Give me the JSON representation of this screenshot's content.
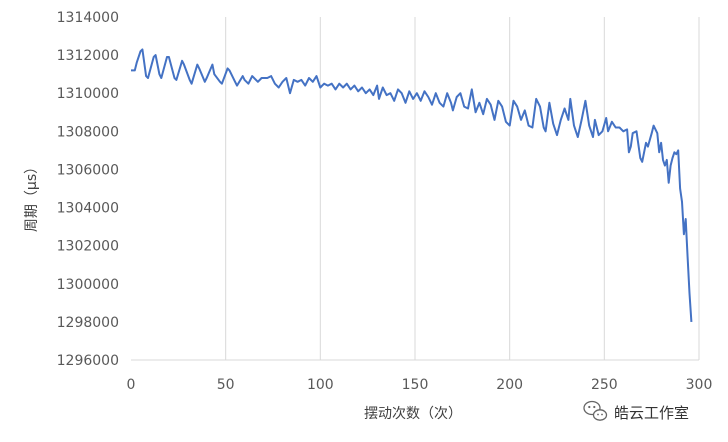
{
  "chart_data": {
    "type": "line",
    "xlabel": "摆动次数（次）",
    "ylabel": "周期（μs）",
    "xlim": [
      0,
      300
    ],
    "ylim": [
      1296000,
      1314000
    ],
    "x_ticks": [
      0,
      50,
      100,
      150,
      200,
      250,
      300
    ],
    "y_ticks": [
      1296000,
      1298000,
      1300000,
      1302000,
      1304000,
      1306000,
      1308000,
      1310000,
      1312000,
      1314000
    ],
    "grid": "vertical",
    "legend": "none",
    "line_color": "#4472C4",
    "series": [
      {
        "points": [
          [
            0,
            1311200
          ],
          [
            2,
            1311200
          ],
          [
            3,
            1311600
          ],
          [
            5,
            1312200
          ],
          [
            6,
            1312300
          ],
          [
            8,
            1310900
          ],
          [
            9,
            1310800
          ],
          [
            12,
            1311900
          ],
          [
            13,
            1312000
          ],
          [
            15,
            1311000
          ],
          [
            16,
            1310800
          ],
          [
            19,
            1311900
          ],
          [
            20,
            1311900
          ],
          [
            23,
            1310800
          ],
          [
            24,
            1310700
          ],
          [
            27,
            1311700
          ],
          [
            28,
            1311500
          ],
          [
            31,
            1310700
          ],
          [
            32,
            1310500
          ],
          [
            35,
            1311500
          ],
          [
            36,
            1311300
          ],
          [
            39,
            1310600
          ],
          [
            40,
            1310800
          ],
          [
            43,
            1311500
          ],
          [
            44,
            1311000
          ],
          [
            47,
            1310600
          ],
          [
            48,
            1310500
          ],
          [
            51,
            1311300
          ],
          [
            52,
            1311200
          ],
          [
            55,
            1310600
          ],
          [
            56,
            1310400
          ],
          [
            59,
            1310900
          ],
          [
            60,
            1310700
          ],
          [
            62,
            1310500
          ],
          [
            64,
            1310900
          ],
          [
            67,
            1310600
          ],
          [
            69,
            1310800
          ],
          [
            72,
            1310800
          ],
          [
            74,
            1310900
          ],
          [
            76,
            1310500
          ],
          [
            78,
            1310300
          ],
          [
            80,
            1310600
          ],
          [
            82,
            1310800
          ],
          [
            84,
            1310000
          ],
          [
            86,
            1310700
          ],
          [
            88,
            1310600
          ],
          [
            90,
            1310700
          ],
          [
            92,
            1310400
          ],
          [
            94,
            1310800
          ],
          [
            96,
            1310600
          ],
          [
            98,
            1310900
          ],
          [
            100,
            1310300
          ],
          [
            102,
            1310500
          ],
          [
            104,
            1310400
          ],
          [
            106,
            1310500
          ],
          [
            108,
            1310200
          ],
          [
            110,
            1310500
          ],
          [
            112,
            1310300
          ],
          [
            114,
            1310500
          ],
          [
            116,
            1310200
          ],
          [
            118,
            1310400
          ],
          [
            120,
            1310100
          ],
          [
            122,
            1310300
          ],
          [
            124,
            1310000
          ],
          [
            126,
            1310200
          ],
          [
            128,
            1309900
          ],
          [
            130,
            1310400
          ],
          [
            131,
            1309700
          ],
          [
            133,
            1310300
          ],
          [
            135,
            1309900
          ],
          [
            137,
            1310000
          ],
          [
            139,
            1309600
          ],
          [
            141,
            1310200
          ],
          [
            143,
            1310000
          ],
          [
            145,
            1309500
          ],
          [
            147,
            1310100
          ],
          [
            149,
            1309700
          ],
          [
            151,
            1310000
          ],
          [
            153,
            1309600
          ],
          [
            155,
            1310100
          ],
          [
            157,
            1309800
          ],
          [
            159,
            1309400
          ],
          [
            161,
            1310000
          ],
          [
            163,
            1309500
          ],
          [
            165,
            1309300
          ],
          [
            167,
            1310000
          ],
          [
            169,
            1309500
          ],
          [
            170,
            1309100
          ],
          [
            172,
            1309800
          ],
          [
            174,
            1310000
          ],
          [
            176,
            1309300
          ],
          [
            178,
            1309200
          ],
          [
            180,
            1310200
          ],
          [
            182,
            1309000
          ],
          [
            184,
            1309500
          ],
          [
            186,
            1308900
          ],
          [
            188,
            1309700
          ],
          [
            190,
            1309400
          ],
          [
            192,
            1308600
          ],
          [
            194,
            1309600
          ],
          [
            196,
            1309300
          ],
          [
            198,
            1308500
          ],
          [
            200,
            1308300
          ],
          [
            202,
            1309600
          ],
          [
            204,
            1309300
          ],
          [
            206,
            1308600
          ],
          [
            208,
            1309100
          ],
          [
            210,
            1308300
          ],
          [
            212,
            1308200
          ],
          [
            214,
            1309700
          ],
          [
            216,
            1309300
          ],
          [
            218,
            1308200
          ],
          [
            219,
            1308000
          ],
          [
            221,
            1309500
          ],
          [
            223,
            1308400
          ],
          [
            225,
            1307800
          ],
          [
            227,
            1308600
          ],
          [
            229,
            1309200
          ],
          [
            231,
            1308600
          ],
          [
            232,
            1309700
          ],
          [
            234,
            1308300
          ],
          [
            236,
            1307700
          ],
          [
            238,
            1308600
          ],
          [
            240,
            1309600
          ],
          [
            242,
            1308300
          ],
          [
            244,
            1307700
          ],
          [
            245,
            1308600
          ],
          [
            247,
            1307800
          ],
          [
            249,
            1308000
          ],
          [
            251,
            1308700
          ],
          [
            252,
            1308000
          ],
          [
            254,
            1308500
          ],
          [
            256,
            1308200
          ],
          [
            258,
            1308200
          ],
          [
            260,
            1308000
          ],
          [
            262,
            1308100
          ],
          [
            263,
            1306900
          ],
          [
            264,
            1307200
          ],
          [
            265,
            1307900
          ],
          [
            267,
            1308000
          ],
          [
            269,
            1306600
          ],
          [
            270,
            1306400
          ],
          [
            272,
            1307400
          ],
          [
            273,
            1307200
          ],
          [
            275,
            1307900
          ],
          [
            276,
            1308300
          ],
          [
            278,
            1307900
          ],
          [
            279,
            1306900
          ],
          [
            280,
            1307400
          ],
          [
            281,
            1306500
          ],
          [
            282,
            1306200
          ],
          [
            283,
            1306500
          ],
          [
            284,
            1305300
          ],
          [
            285,
            1306200
          ],
          [
            286,
            1306600
          ],
          [
            287,
            1306900
          ],
          [
            288,
            1306800
          ],
          [
            289,
            1307000
          ],
          [
            290,
            1305000
          ],
          [
            291,
            1304300
          ],
          [
            292,
            1302600
          ],
          [
            293,
            1303400
          ],
          [
            294,
            1301400
          ],
          [
            295,
            1299500
          ],
          [
            296,
            1298000
          ]
        ]
      }
    ]
  },
  "watermark": {
    "icon": "wechat-icon",
    "text": "皓云工作室"
  }
}
